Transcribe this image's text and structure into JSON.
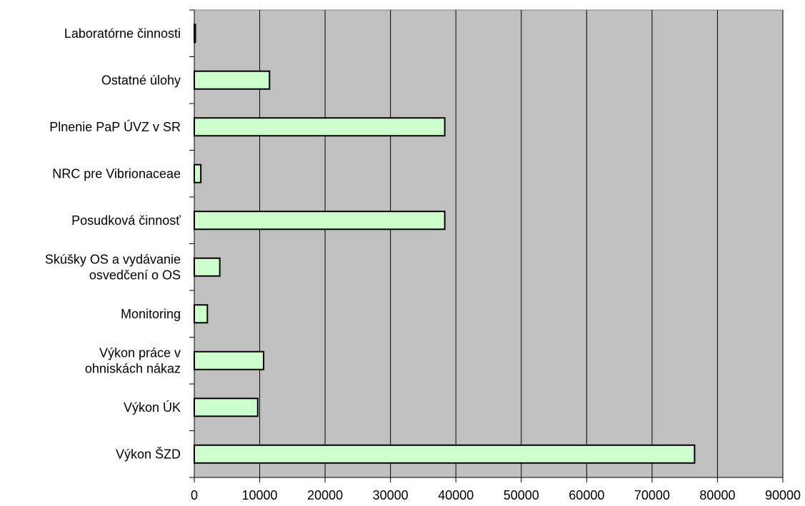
{
  "chart_data": {
    "type": "bar",
    "orientation": "horizontal",
    "categories": [
      "Laboratórne činnosti",
      "Ostatné úlohy",
      "Plnenie PaP ÚVZ v SR",
      "NRC pre Vibrionaceae",
      "Posudková činnosť",
      "Skúšky OS a vydávanie osvedčení o OS",
      "Monitoring",
      "Výkon práce v ohniskách nákaz",
      "Výkon ÚK",
      "Výkon ŠZD"
    ],
    "category_lines": [
      [
        "Laboratórne činnosti"
      ],
      [
        "Ostatné úlohy"
      ],
      [
        "Plnenie PaP ÚVZ v SR"
      ],
      [
        "NRC pre Vibrionaceae"
      ],
      [
        "Posudková činnosť"
      ],
      [
        "Skúšky OS a vydávanie",
        "osvedčení o OS"
      ],
      [
        "Monitoring"
      ],
      [
        "Výkon práce v",
        "ohniskách nákaz"
      ],
      [
        "Výkon ÚK"
      ],
      [
        "Výkon ŠZD"
      ]
    ],
    "values": [
      100,
      11500,
      38300,
      1000,
      38300,
      3900,
      2000,
      10600,
      9700,
      76500
    ],
    "xlim": [
      0,
      90000
    ],
    "xticks": [
      0,
      10000,
      20000,
      30000,
      40000,
      50000,
      60000,
      70000,
      80000,
      90000
    ],
    "xtick_labels": [
      "0",
      "10000",
      "20000",
      "30000",
      "40000",
      "50000",
      "60000",
      "70000",
      "80000",
      "90000"
    ],
    "grid": "vertical",
    "colors": {
      "bar_fill": "#ccffcc",
      "bar_stroke": "#000000",
      "plot_background": "#c0c0c0",
      "gridline": "#000000"
    }
  }
}
